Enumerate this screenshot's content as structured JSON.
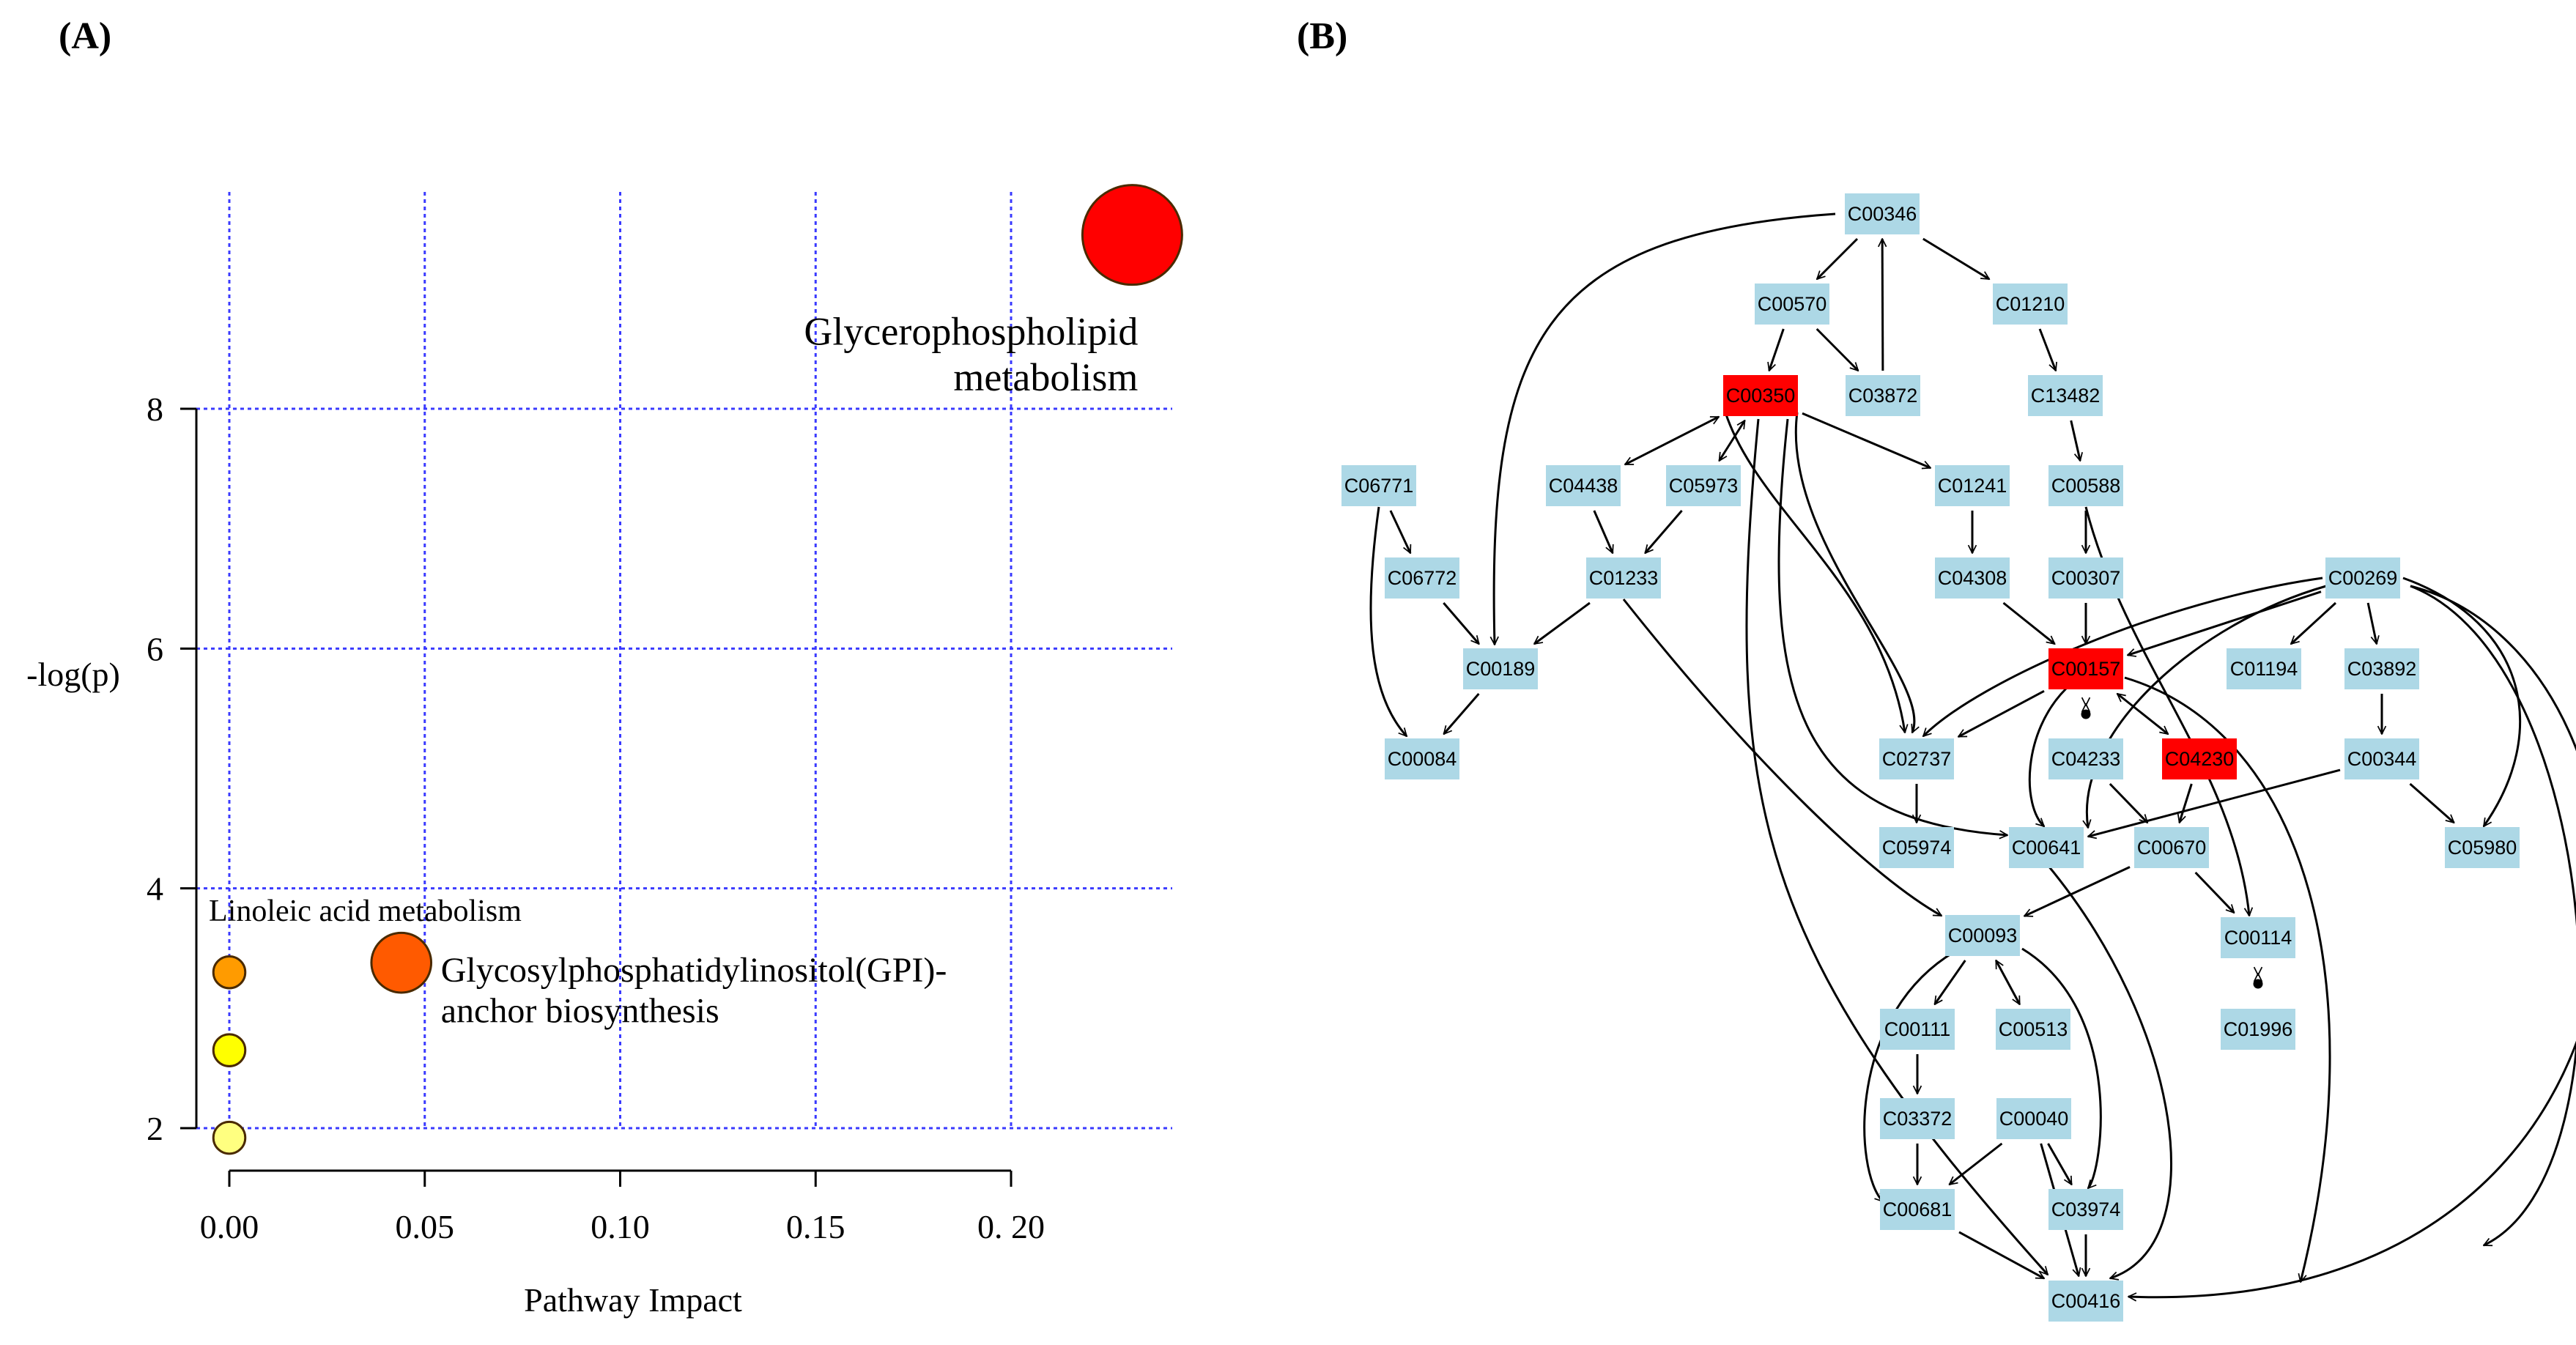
{
  "panels": {
    "a_label": "(A)",
    "b_label": "(B)"
  },
  "chart_data": {
    "type": "scatter",
    "title": "",
    "xlabel": "Pathway Impact",
    "ylabel": "-log(p)",
    "xlim": [
      -0.01,
      0.24
    ],
    "ylim": [
      1.65,
      10.0
    ],
    "x_grid": [
      0.0,
      0.05,
      0.1,
      0.15,
      0.2
    ],
    "x_tick_labels": [
      "0.00",
      "0.05",
      "0.10",
      "0.15",
      "0. 20"
    ],
    "y_ticks": [
      2,
      4,
      6,
      8
    ],
    "y_tick_labels": [
      "2",
      "4",
      "6",
      "8"
    ],
    "grid": true,
    "points": [
      {
        "name": "Glycerophospholipid metabolism",
        "label_lines": [
          "Glycerophospholipid",
          "metabolism"
        ],
        "x": 0.231,
        "y": 9.45,
        "size": 1.0,
        "color": "#ff0000"
      },
      {
        "name": "Glycosylphosphatidylinositol(GPI)-anchor biosynthesis",
        "label_lines": [
          "Glycosylphosphatidylinositol(GPI)-",
          "anchor biosynthesis"
        ],
        "x": 0.044,
        "y": 3.38,
        "size": 0.6,
        "color": "#ff5a00"
      },
      {
        "name": "Linoleic acid metabolism",
        "label_lines": [
          "Linoleic acid metabolism"
        ],
        "x": 0.0,
        "y": 3.3,
        "size": 0.32,
        "color": "#ff9b00"
      },
      {
        "name": "",
        "label_lines": [],
        "x": 0.0,
        "y": 2.65,
        "size": 0.32,
        "color": "#ffff00"
      },
      {
        "name": "",
        "label_lines": [],
        "x": 0.0,
        "y": 1.92,
        "size": 0.32,
        "color": "#ffff80"
      }
    ]
  },
  "network": {
    "colors": {
      "normal": "#add8e6",
      "highlight": "#ff0000",
      "edge": "#000000"
    },
    "nodes": [
      {
        "id": "C00346",
        "hl": false
      },
      {
        "id": "C00570",
        "hl": false
      },
      {
        "id": "C01210",
        "hl": false
      },
      {
        "id": "C00350",
        "hl": true
      },
      {
        "id": "C03872",
        "hl": false
      },
      {
        "id": "C13482",
        "hl": false
      },
      {
        "id": "C06771",
        "hl": false
      },
      {
        "id": "C04438",
        "hl": false
      },
      {
        "id": "C05973",
        "hl": false
      },
      {
        "id": "C01241",
        "hl": false
      },
      {
        "id": "C00588",
        "hl": false
      },
      {
        "id": "C06772",
        "hl": false
      },
      {
        "id": "C01233",
        "hl": false
      },
      {
        "id": "C04308",
        "hl": false
      },
      {
        "id": "C00307",
        "hl": false
      },
      {
        "id": "C00269",
        "hl": false
      },
      {
        "id": "C00189",
        "hl": false
      },
      {
        "id": "C00157",
        "hl": true
      },
      {
        "id": "C01194",
        "hl": false
      },
      {
        "id": "C03892",
        "hl": false
      },
      {
        "id": "C00084",
        "hl": false
      },
      {
        "id": "C02737",
        "hl": false
      },
      {
        "id": "C04233",
        "hl": false
      },
      {
        "id": "C04230",
        "hl": true
      },
      {
        "id": "C00344",
        "hl": false
      },
      {
        "id": "C05974",
        "hl": false
      },
      {
        "id": "C00641",
        "hl": false
      },
      {
        "id": "C00670",
        "hl": false
      },
      {
        "id": "C05980",
        "hl": false
      },
      {
        "id": "C00093",
        "hl": false
      },
      {
        "id": "C00114",
        "hl": false
      },
      {
        "id": "C00111",
        "hl": false
      },
      {
        "id": "C00513",
        "hl": false
      },
      {
        "id": "C01996",
        "hl": false
      },
      {
        "id": "C03372",
        "hl": false
      },
      {
        "id": "C00040",
        "hl": false
      },
      {
        "id": "C00681",
        "hl": false
      },
      {
        "id": "C03974",
        "hl": false
      },
      {
        "id": "C00416",
        "hl": false
      }
    ]
  }
}
